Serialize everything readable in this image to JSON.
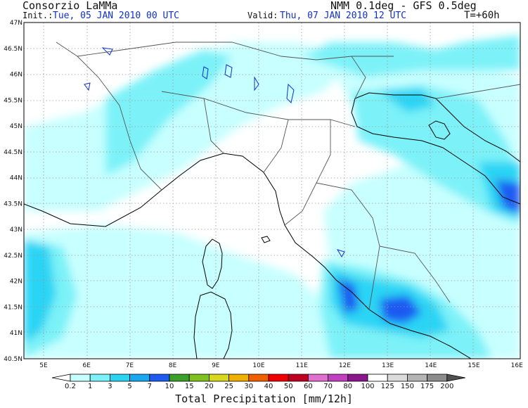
{
  "header": {
    "org": "Consorzio LaMMa",
    "model": "NMM 0.1deg - GFS 0.5deg",
    "init_label": "Init.:",
    "init_value": "Tue, 05 JAN 2010  00 UTC",
    "valid_label": "Valid:",
    "valid_value": "Thu, 07 JAN 2010  12 UTC",
    "lead_time": "T=+60h"
  },
  "axes": {
    "lat_labels": [
      "47N",
      "46.5N",
      "46N",
      "45.5N",
      "45N",
      "44.5N",
      "44N",
      "43.5N",
      "43N",
      "42.5N",
      "42N",
      "41.5N",
      "41N",
      "40.5N"
    ],
    "lon_labels": [
      "5E",
      "6E",
      "7E",
      "8E",
      "9E",
      "10E",
      "11E",
      "12E",
      "13E",
      "14E",
      "15E",
      "16E"
    ]
  },
  "legend": {
    "title": "Total Precipitation [mm/12h]",
    "thresholds": [
      "0.2",
      "1",
      "3",
      "5",
      "7",
      "10",
      "15",
      "20",
      "25",
      "30",
      "40",
      "50",
      "60",
      "70",
      "80",
      "100",
      "125",
      "150",
      "175",
      "200"
    ],
    "colors": [
      "#ffffff",
      "#c8ffff",
      "#7cf2f8",
      "#2cd4f4",
      "#1aa8f0",
      "#1f5af2",
      "#3aa02a",
      "#80c020",
      "#d8d820",
      "#f0b000",
      "#f06000",
      "#f00000",
      "#c00020",
      "#e070d0",
      "#c040c0",
      "#8c168c",
      "#ffffff",
      "#dcdcdc",
      "#b4b4b4",
      "#8c8c8c",
      "#505050"
    ]
  },
  "colors": {
    "precip_light": "#c8ffff",
    "precip_mid": "#7cf2f8",
    "precip_high": "#2cd4f4",
    "precip_max": "#1f5af2",
    "coast": "#000000",
    "lakes": "#1030c8"
  }
}
